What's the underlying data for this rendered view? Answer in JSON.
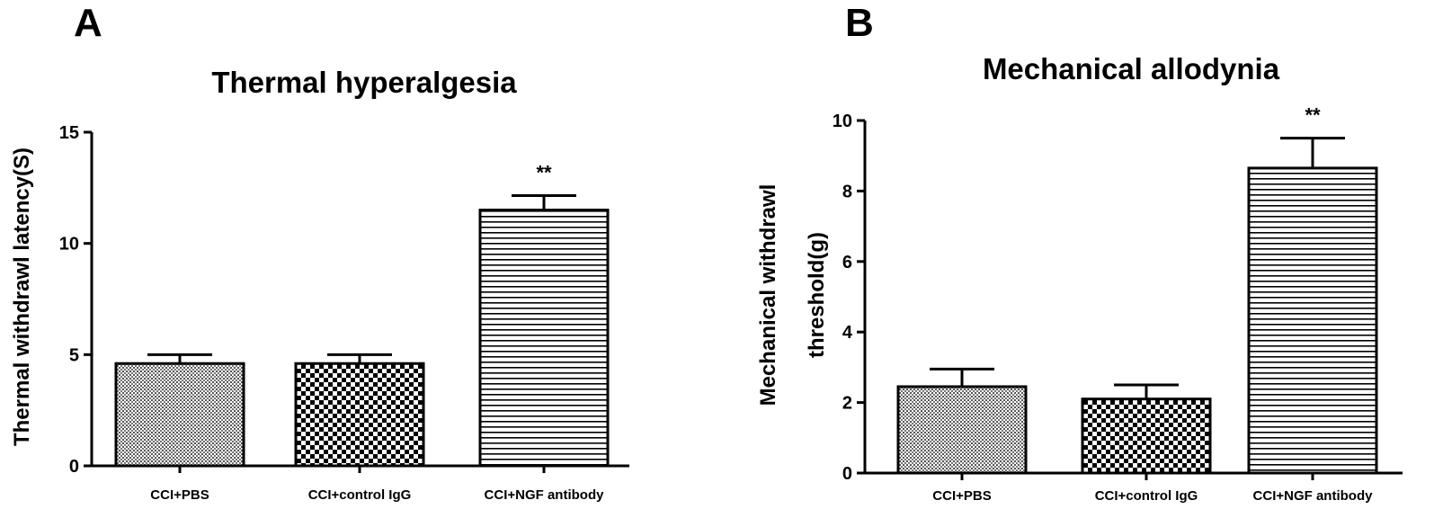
{
  "chart_data": [
    {
      "type": "bar",
      "panel": "A",
      "title": "Thermal hyperalgesia",
      "xlabel": "",
      "ylabel": "Thermal withdrawl latency(S)",
      "ylim": [
        0,
        15
      ],
      "yticks": [
        0,
        5,
        10,
        15
      ],
      "categories": [
        "CCI+PBS",
        "CCI+control IgG",
        "CCI+NGF antibody"
      ],
      "values": [
        4.6,
        4.6,
        11.5
      ],
      "errors": [
        0.4,
        0.4,
        0.65
      ],
      "patterns": [
        "fine-dots",
        "checker",
        "horizontal-lines"
      ],
      "annotations": [
        "",
        "",
        "**"
      ],
      "grid": false,
      "legend": "none"
    },
    {
      "type": "bar",
      "panel": "B",
      "title": "Mechanical allodynia",
      "xlabel": "",
      "ylabel": [
        "Mechanical withdrawl",
        "threshold(g)"
      ],
      "ylim": [
        0,
        10
      ],
      "yticks": [
        0,
        2,
        4,
        6,
        8,
        10
      ],
      "tick_decimals": 1,
      "categories": [
        "CCI+PBS",
        "CCI+control IgG",
        "CCI+NGF antibody"
      ],
      "values": [
        2.45,
        2.1,
        8.65
      ],
      "errors": [
        0.5,
        0.4,
        0.85
      ],
      "patterns": [
        "fine-dots",
        "checker",
        "horizontal-lines"
      ],
      "annotations": [
        "",
        "",
        "**"
      ],
      "grid": false,
      "legend": "none"
    }
  ],
  "colors": {
    "ink": "#000000",
    "background": "#ffffff"
  }
}
